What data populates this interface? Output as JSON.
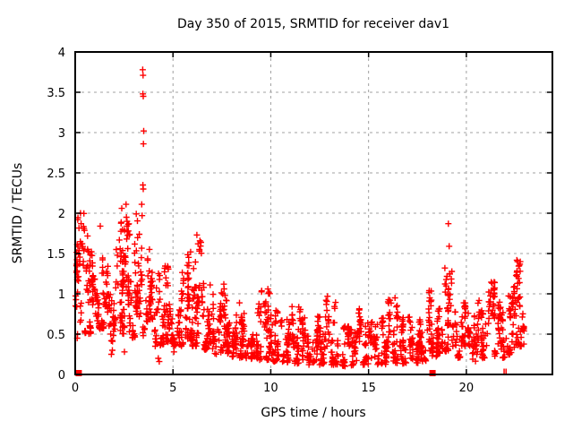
{
  "page": {
    "background": "#ffffff",
    "text_color": "#000000"
  },
  "chart_data": {
    "type": "scatter",
    "title": "Day 350 of 2015, SRMTID for receiver dav1",
    "xlabel": "GPS time / hours",
    "ylabel": "SRMTID / TECUs",
    "xlim": [
      0,
      24.4
    ],
    "ylim": [
      0,
      4
    ],
    "xticks": {
      "values": [
        0,
        5,
        10,
        15,
        20
      ],
      "labels": [
        "0",
        "5",
        "10",
        "15",
        "20"
      ]
    },
    "yticks": {
      "values": [
        0,
        0.5,
        1,
        1.5,
        2,
        2.5,
        3,
        3.5,
        4
      ],
      "labels": [
        "0",
        "0.5",
        "1",
        "1.5",
        "2",
        "2.5",
        "3",
        "3.5",
        "4"
      ]
    },
    "grid": {
      "show": true,
      "color": "#a0a0a0",
      "style": "dashed"
    },
    "axis_color": "#000000",
    "marker": {
      "shape": "plus",
      "color": "#ff0000",
      "size": 7
    },
    "legend": "none",
    "seed": 350,
    "outlier_points": [
      [
        0.27,
        2.0
      ],
      [
        0.3,
        1.87
      ],
      [
        0.33,
        1.62
      ],
      [
        0.1,
        0.45
      ],
      [
        0.12,
        0.5
      ],
      [
        1.28,
        1.84
      ],
      [
        1.85,
        0.25
      ],
      [
        1.9,
        0.3
      ],
      [
        2.1,
        1.55
      ],
      [
        2.38,
        2.06
      ],
      [
        2.52,
        0.28
      ],
      [
        2.6,
        2.11
      ],
      [
        2.62,
        1.95
      ],
      [
        2.72,
        1.78
      ],
      [
        3.4,
        2.11
      ],
      [
        3.42,
        1.97
      ],
      [
        3.45,
        3.78
      ],
      [
        3.47,
        3.71
      ],
      [
        3.46,
        3.48
      ],
      [
        3.48,
        3.45
      ],
      [
        3.5,
        3.02
      ],
      [
        3.49,
        2.86
      ],
      [
        3.46,
        2.35
      ],
      [
        3.48,
        2.3
      ],
      [
        4.25,
        0.2
      ],
      [
        4.3,
        0.16
      ],
      [
        5.05,
        0.28
      ],
      [
        5.9,
        1.52
      ],
      [
        6.22,
        1.73
      ],
      [
        6.28,
        1.62
      ],
      [
        6.35,
        1.55
      ],
      [
        6.9,
        1.11
      ],
      [
        7.6,
        1.12
      ],
      [
        9.85,
        1.06
      ],
      [
        9.9,
        1.02
      ],
      [
        12.9,
        0.97
      ],
      [
        16.35,
        0.95
      ],
      [
        18.9,
        1.32
      ],
      [
        19.08,
        1.87
      ],
      [
        19.12,
        1.59
      ],
      [
        19.15,
        1.25
      ],
      [
        21.45,
        1.14
      ],
      [
        22.62,
        1.4
      ],
      [
        22.7,
        1.35
      ],
      [
        22.75,
        1.28
      ]
    ],
    "zero_squares": [
      0.18,
      18.27
    ],
    "zero_bars": [
      21.93,
      22.03
    ],
    "density_bands": [
      [
        0.0,
        0.5,
        0.5,
        2.0,
        45
      ],
      [
        0.5,
        1.0,
        0.5,
        1.85,
        55
      ],
      [
        1.0,
        1.5,
        0.55,
        1.5,
        50
      ],
      [
        1.5,
        2.0,
        0.4,
        1.35,
        45
      ],
      [
        2.0,
        2.5,
        0.5,
        1.9,
        55
      ],
      [
        2.5,
        3.0,
        0.45,
        1.9,
        50
      ],
      [
        3.0,
        3.5,
        0.5,
        2.25,
        50
      ],
      [
        3.5,
        4.0,
        0.45,
        1.6,
        45
      ],
      [
        4.0,
        4.5,
        0.35,
        1.3,
        40
      ],
      [
        4.5,
        5.0,
        0.4,
        1.35,
        45
      ],
      [
        5.0,
        5.5,
        0.35,
        1.3,
        40
      ],
      [
        5.5,
        6.0,
        0.4,
        1.5,
        45
      ],
      [
        6.0,
        6.5,
        0.35,
        1.72,
        50
      ],
      [
        6.5,
        7.0,
        0.3,
        1.15,
        45
      ],
      [
        7.0,
        7.5,
        0.25,
        1.05,
        40
      ],
      [
        7.5,
        8.0,
        0.25,
        1.12,
        45
      ],
      [
        8.0,
        8.5,
        0.2,
        0.9,
        40
      ],
      [
        8.5,
        9.0,
        0.18,
        0.8,
        40
      ],
      [
        9.0,
        9.5,
        0.18,
        0.92,
        42
      ],
      [
        9.5,
        10.0,
        0.18,
        1.06,
        45
      ],
      [
        10.0,
        10.5,
        0.16,
        0.92,
        40
      ],
      [
        10.5,
        11.0,
        0.15,
        0.75,
        38
      ],
      [
        11.0,
        11.5,
        0.13,
        0.85,
        40
      ],
      [
        11.5,
        12.0,
        0.12,
        0.72,
        38
      ],
      [
        12.0,
        12.5,
        0.12,
        0.75,
        38
      ],
      [
        12.5,
        13.0,
        0.12,
        0.95,
        40
      ],
      [
        13.0,
        13.5,
        0.12,
        0.9,
        38
      ],
      [
        13.5,
        14.0,
        0.1,
        0.6,
        36
      ],
      [
        14.0,
        14.5,
        0.1,
        0.6,
        36
      ],
      [
        14.5,
        15.0,
        0.12,
        0.85,
        38
      ],
      [
        15.0,
        15.5,
        0.12,
        0.65,
        36
      ],
      [
        15.5,
        16.0,
        0.12,
        0.7,
        36
      ],
      [
        16.0,
        16.5,
        0.14,
        0.95,
        40
      ],
      [
        16.5,
        17.0,
        0.12,
        0.72,
        36
      ],
      [
        17.0,
        17.5,
        0.14,
        0.78,
        38
      ],
      [
        17.5,
        18.0,
        0.16,
        0.85,
        38
      ],
      [
        18.0,
        18.5,
        0.22,
        1.1,
        40
      ],
      [
        18.5,
        19.0,
        0.26,
        1.25,
        42
      ],
      [
        19.0,
        19.5,
        0.28,
        1.3,
        45
      ],
      [
        19.5,
        20.0,
        0.2,
        0.9,
        38
      ],
      [
        20.0,
        20.5,
        0.16,
        0.78,
        36
      ],
      [
        20.5,
        21.0,
        0.2,
        0.92,
        38
      ],
      [
        21.0,
        21.5,
        0.22,
        1.15,
        40
      ],
      [
        21.5,
        22.0,
        0.2,
        0.92,
        38
      ],
      [
        22.0,
        22.5,
        0.24,
        1.1,
        42
      ],
      [
        22.5,
        22.95,
        0.3,
        1.42,
        45
      ]
    ]
  }
}
